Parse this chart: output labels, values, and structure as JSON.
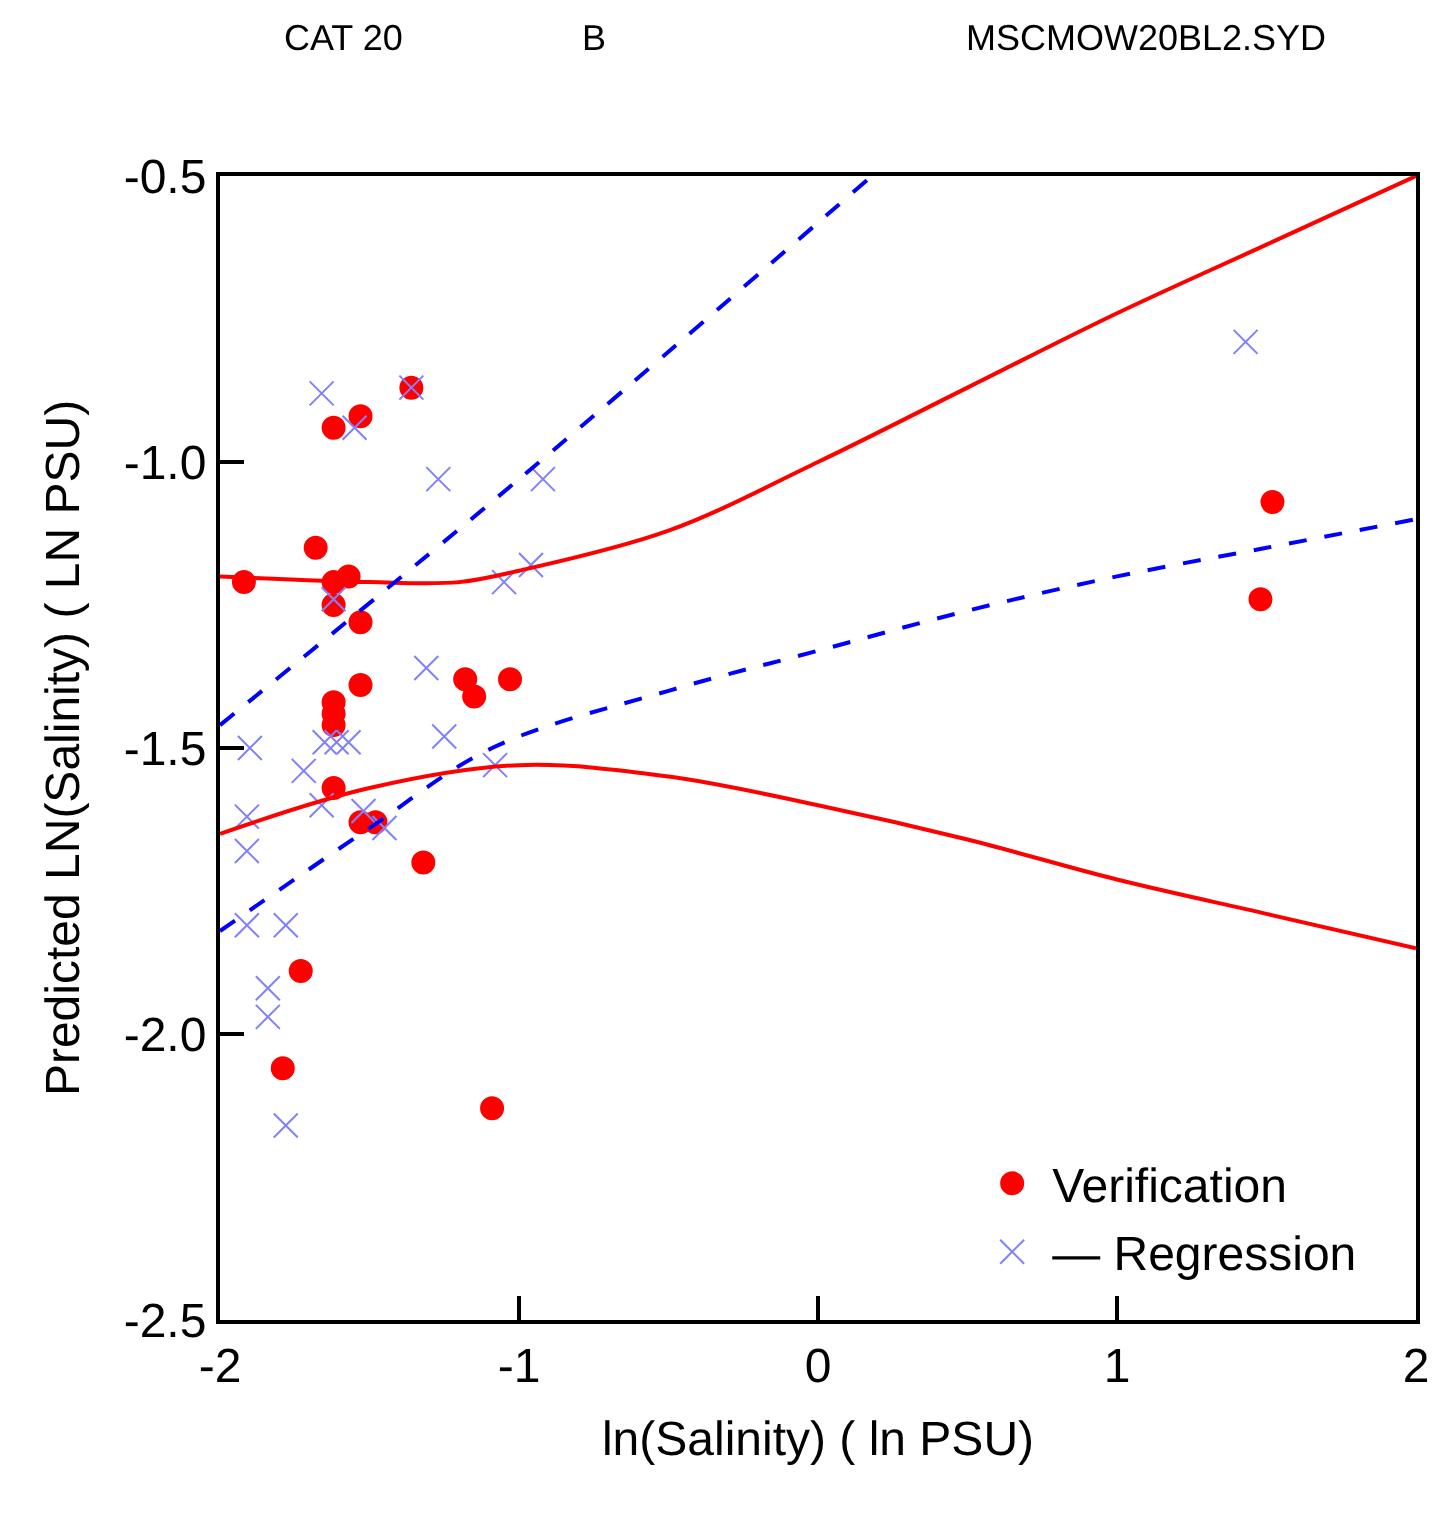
{
  "chart_data": {
    "type": "scatter",
    "xlabel": "ln(Salinity) ( ln PSU)",
    "ylabel": "Predicted LN(Salinity) ( LN PSU)",
    "annotations": [
      "CAT 20",
      "B",
      "MSCMOW20BL2.SYD"
    ],
    "xlim": [
      -2,
      2
    ],
    "xticks": [
      -2,
      -1,
      0,
      1,
      2
    ],
    "ylim": [
      -2.5,
      -0.5
    ],
    "yticks": [
      -2.5,
      {
        "value": -2.0,
        "label": "-2.0"
      },
      -1.5,
      {
        "value": -1.0,
        "label": "-1.0"
      },
      -0.5
    ],
    "legend": "bottom right",
    "series": [
      {
        "name": "Verification",
        "marker": "circle",
        "color": "#ff0000",
        "x": [
          -1.92,
          -1.68,
          -1.62,
          -1.53,
          -1.36,
          -1.62,
          -1.57,
          -1.62,
          -1.53,
          -1.53,
          -1.62,
          -1.62,
          -1.62,
          -1.62,
          -1.53,
          -1.48,
          -1.32,
          -1.18,
          -1.15,
          -1.03,
          -1.73,
          -1.79,
          -1.09,
          1.52,
          1.48
        ],
        "values": [
          -1.21,
          -1.15,
          -0.94,
          -0.92,
          -0.87,
          -1.21,
          -1.2,
          -1.25,
          -1.28,
          -1.39,
          -1.42,
          -1.44,
          -1.46,
          -1.57,
          -1.63,
          -1.63,
          -1.7,
          -1.38,
          -1.41,
          -1.38,
          -1.89,
          -2.06,
          -2.13,
          -1.07,
          -1.24
        ]
      },
      {
        "name": "— Regression",
        "marker": "cross",
        "color": "#8080ff",
        "x": [
          -1.66,
          -1.55,
          -1.36,
          -1.27,
          -0.92,
          -0.96,
          -1.05,
          -1.31,
          -1.62,
          -1.9,
          -1.65,
          -1.61,
          -1.57,
          -1.25,
          -1.08,
          -1.72,
          -1.66,
          -1.52,
          -1.45,
          -1.91,
          -1.91,
          -1.91,
          -1.78,
          -1.84,
          -1.84,
          -1.78,
          1.43
        ],
        "values": [
          -0.88,
          -0.94,
          -0.87,
          -1.03,
          -1.03,
          -1.18,
          -1.21,
          -1.36,
          -1.24,
          -1.5,
          -1.49,
          -1.49,
          -1.49,
          -1.48,
          -1.53,
          -1.54,
          -1.6,
          -1.61,
          -1.64,
          -1.62,
          -1.68,
          -1.81,
          -1.81,
          -1.92,
          -1.97,
          -2.16,
          -0.79
        ]
      },
      {
        "type": "line",
        "line_style": "solid",
        "color": "#ff0000",
        "x": [
          -2,
          -1.5,
          -1.2,
          -1,
          -0.5,
          0,
          0.5,
          1,
          1.5,
          2
        ],
        "values": [
          -1.2,
          -1.21,
          -1.21,
          -1.19,
          -1.12,
          -1.0,
          -0.87,
          -0.74,
          -0.62,
          -0.5
        ]
      },
      {
        "type": "line",
        "line_style": "solid",
        "color": "#ff0000",
        "x": [
          -2,
          -1.5,
          -1,
          -0.5,
          0,
          0.5,
          1,
          1.5,
          2
        ],
        "values": [
          -1.65,
          -1.57,
          -1.53,
          -1.55,
          -1.6,
          -1.66,
          -1.73,
          -1.79,
          -1.85
        ]
      },
      {
        "type": "line",
        "line_style": "dashed",
        "color": "#0000ff",
        "x": [
          -2,
          -1,
          0.18
        ],
        "values": [
          -1.46,
          -1.03,
          -0.5
        ]
      },
      {
        "type": "line",
        "line_style": "dashed",
        "color": "#0000ff",
        "x": [
          -2,
          -1.5,
          -1.09,
          -0.5,
          0,
          0.5,
          1,
          1.5,
          2
        ],
        "values": [
          -1.82,
          -1.64,
          -1.5,
          -1.4,
          -1.33,
          -1.26,
          -1.2,
          -1.15,
          -1.1
        ]
      }
    ]
  }
}
